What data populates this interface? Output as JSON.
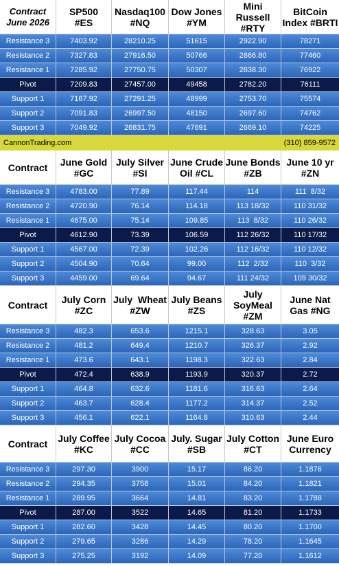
{
  "banner": {
    "site": "CannonTrading.com",
    "phone": "(310) 859-9572"
  },
  "sections": [
    {
      "header": [
        "Contract\nJune 2026",
        "SP500\n#ES",
        "Nasdaq100\n#NQ",
        "Dow Jones\n#YM",
        "Mini Russell\n#RTY",
        "BitCoin\nIndex #BRTI"
      ],
      "rows": [
        [
          "Resistance 3",
          "7403.92",
          "28210.25",
          "51615",
          "2922.90",
          "78271"
        ],
        [
          "Resistance 2",
          "7327.83",
          "27916.50",
          "50766",
          "2866.80",
          "77460"
        ],
        [
          "Resistance 1",
          "7285.92",
          "27750.75",
          "50307",
          "2838.30",
          "76922"
        ],
        [
          "Pivot",
          "7209.83",
          "27457.00",
          "49458",
          "2782.20",
          "76111"
        ],
        [
          "Support 1",
          "7167.92",
          "27291.25",
          "48999",
          "2753.70",
          "75574"
        ],
        [
          "Support 2",
          "7091.83",
          "26997.50",
          "48150",
          "2697.60",
          "74762"
        ],
        [
          "Support 3",
          "7049.92",
          "26831.75",
          "47691",
          "2669.10",
          "74225"
        ]
      ]
    },
    {
      "header": [
        "Contract",
        "June Gold\n#GC",
        "July Silver\n#SI",
        "June Crude\nOil #CL",
        "June Bonds\n#ZB",
        "June 10 yr\n#ZN"
      ],
      "rows": [
        [
          "Resistance 3",
          "4783.00",
          "77.89",
          "117.44",
          "114",
          "111  8/32"
        ],
        [
          "Resistance 2",
          "4720.90",
          "76.14",
          "114.18",
          "113 18/32",
          "110 31/32"
        ],
        [
          "Resistance 1",
          "4675.00",
          "75.14",
          "109.85",
          "113  8/32",
          "110 26/32"
        ],
        [
          "Pivot",
          "4612.90",
          "73.39",
          "106.59",
          "112 26/32",
          "110 17/32"
        ],
        [
          "Support 1",
          "4567.00",
          "72.39",
          "102.26",
          "112 16/32",
          "110 12/32"
        ],
        [
          "Support 2",
          "4504.90",
          "70.64",
          "99.00",
          "112  2/32",
          "110  3/32"
        ],
        [
          "Support 3",
          "4459.00",
          "69.64",
          "94.67",
          "111 24/32",
          "109 30/32"
        ]
      ]
    },
    {
      "header": [
        "Contract",
        "July Corn\n#ZC",
        "July  Wheat\n#ZW",
        "July Beans\n#ZS",
        "July\nSoyMeal\n#ZM",
        "June Nat\nGas #NG"
      ],
      "rows": [
        [
          "Resistance 3",
          "482.3",
          "653.6",
          "1215.1",
          "328.63",
          "3.05"
        ],
        [
          "Resistance 2",
          "481.2",
          "649.4",
          "1210.7",
          "326.37",
          "2.92"
        ],
        [
          "Resistance 1",
          "473.6",
          "643.1",
          "1198.3",
          "322.63",
          "2.84"
        ],
        [
          "Pivot",
          "472.4",
          "638.9",
          "1193.9",
          "320.37",
          "2.72"
        ],
        [
          "Support 1",
          "464.8",
          "632.6",
          "1181.6",
          "316.63",
          "2.64"
        ],
        [
          "Support 2",
          "463.7",
          "628.4",
          "1177.2",
          "314.37",
          "2.52"
        ],
        [
          "Support 3",
          "456.1",
          "622.1",
          "1164.8",
          "310.63",
          "2.44"
        ]
      ]
    },
    {
      "header": [
        "Contract",
        "July Coffee\n#KC",
        "July Cocoa\n#CC",
        "July. Sugar\n#SB",
        "July Cotton\n#CT",
        "June Euro\nCurrency"
      ],
      "rows": [
        [
          "Resistance 3",
          "297.30",
          "3900",
          "15.17",
          "86.20",
          "1.1876"
        ],
        [
          "Resistance 2",
          "294.35",
          "3758",
          "15.01",
          "84.20",
          "1.1821"
        ],
        [
          "Resistance 1",
          "289.95",
          "3664",
          "14.81",
          "83.20",
          "1.1788"
        ],
        [
          "Pivot",
          "287.00",
          "3522",
          "14.65",
          "81.20",
          "1.1733"
        ],
        [
          "Support 1",
          "282.60",
          "3428",
          "14.45",
          "80.20",
          "1.1700"
        ],
        [
          "Support 2",
          "279.65",
          "3286",
          "14.29",
          "78.20",
          "1.1645"
        ],
        [
          "Support 3",
          "275.25",
          "3192",
          "14.09",
          "77.20",
          "1.1612"
        ]
      ]
    }
  ]
}
